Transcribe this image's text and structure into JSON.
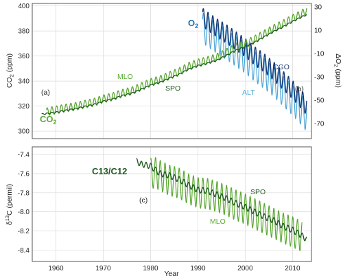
{
  "colors": {
    "light_green": "#5aa832",
    "dark_green": "#1f5a1f",
    "light_blue": "#4ea6d6",
    "dark_blue": "#173a78",
    "o2_label": "#1a6fb4",
    "grid": "#d9d9d9",
    "frame": "#555555"
  },
  "chart_data": [
    {
      "type": "line",
      "x_ticks": [
        "1960",
        "1970",
        "1980",
        "1990",
        "2000",
        "2010"
      ],
      "xlim": [
        1955,
        2014
      ],
      "left_axis": {
        "ylabel": "CO",
        "ylabel_sub": "2",
        "ylabel_unit": " (ppm)",
        "ylim": [
          294,
          402
        ],
        "ticks": [
          "300",
          "320",
          "340",
          "360",
          "380",
          "400"
        ]
      },
      "right_axis": {
        "ylabel": "ΔO",
        "ylabel_sub": "2",
        "ylabel_unit": " (ppm)",
        "ylim": [
          -83,
          33
        ],
        "ticks": [
          "30",
          "10",
          "-10",
          "-30",
          "-50",
          "-70"
        ]
      },
      "panel_label_left": "(a)",
      "panel_label_right": "(b)",
      "labels": {
        "co2_main": "CO",
        "co2_sub": "2",
        "o2_main": "O",
        "o2_sub": "2",
        "mlo": "MLO",
        "spo": "SPO",
        "cgo": "CGO",
        "alt": "ALT"
      },
      "series": [
        {
          "name": "MLO",
          "axis": "left",
          "x": [
            1958,
            1960,
            1962,
            1964,
            1966,
            1968,
            1970,
            1972,
            1974,
            1976,
            1978,
            1980,
            1982,
            1984,
            1986,
            1988,
            1990,
            1992,
            1994,
            1996,
            1998,
            2000,
            2002,
            2004,
            2006,
            2008,
            2010,
            2012,
            2013
          ],
          "y": [
            315.3,
            316.9,
            318.4,
            319.6,
            321.4,
            323.0,
            325.7,
            327.5,
            330.2,
            332.1,
            335.4,
            338.8,
            341.1,
            344.4,
            347.4,
            351.6,
            354.4,
            356.4,
            358.8,
            362.6,
            366.7,
            369.6,
            373.2,
            377.5,
            381.9,
            385.6,
            389.9,
            393.8,
            396.5
          ],
          "seasonal_amplitude": 3.2
        },
        {
          "name": "SPO",
          "axis": "left",
          "x": [
            1957,
            1960,
            1962,
            1964,
            1966,
            1968,
            1970,
            1972,
            1974,
            1976,
            1978,
            1980,
            1982,
            1984,
            1986,
            1988,
            1990,
            1992,
            1994,
            1996,
            1998,
            2000,
            2002,
            2004,
            2006,
            2008,
            2010,
            2012,
            2013
          ],
          "y": [
            313.5,
            315.0,
            316.5,
            317.8,
            319.5,
            321.2,
            323.8,
            325.6,
            328.3,
            330.2,
            333.4,
            336.8,
            339.0,
            342.4,
            345.3,
            349.4,
            352.2,
            354.2,
            356.6,
            360.4,
            364.5,
            367.4,
            371.0,
            375.3,
            379.6,
            383.3,
            387.6,
            391.4,
            393.0
          ],
          "seasonal_amplitude": 0.5
        },
        {
          "name": "CGO",
          "axis": "right",
          "x": [
            1991,
            1992,
            1994,
            1996,
            1998,
            2000,
            2002,
            2004,
            2006,
            2008,
            2010,
            2012,
            2013
          ],
          "y": [
            21,
            18,
            12,
            7,
            1,
            -5,
            -12,
            -18,
            -25,
            -33,
            -41,
            -50,
            -55
          ],
          "seasonal_amplitude": 8
        },
        {
          "name": "ALT",
          "axis": "right",
          "x": [
            1991,
            1992,
            1994,
            1996,
            1998,
            2000,
            2002,
            2004,
            2006,
            2008,
            2010,
            2012,
            2013
          ],
          "y": [
            12,
            9,
            3,
            -2,
            -8,
            -14,
            -21,
            -27,
            -34,
            -42,
            -50,
            -59,
            -64
          ],
          "seasonal_amplitude": 13
        }
      ]
    },
    {
      "type": "line",
      "x_ticks": [
        "1960",
        "1970",
        "1980",
        "1990",
        "2000",
        "2010"
      ],
      "xlim": [
        1955,
        2014
      ],
      "xlabel": "Year",
      "ylabel_delta": "δ",
      "ylabel_sup": "13",
      "ylabel_rest": "C (permil)",
      "ylim": [
        -8.52,
        -7.32
      ],
      "y_ticks": [
        "-7.4",
        "-7.6",
        "-7.8",
        "-8.0",
        "-8.2",
        "-8.4"
      ],
      "panel_label": "(c)",
      "labels": {
        "title": "C13/C12",
        "spo": "SPO",
        "mlo": "MLO"
      },
      "series": [
        {
          "name": "MLO",
          "x": [
            1980,
            1981,
            1982,
            1984,
            1986,
            1988,
            1990,
            1992,
            1994,
            1996,
            1998,
            2000,
            2002,
            2004,
            2006,
            2008,
            2010,
            2012
          ],
          "y": [
            -7.6,
            -7.59,
            -7.62,
            -7.67,
            -7.7,
            -7.76,
            -7.8,
            -7.81,
            -7.84,
            -7.88,
            -7.93,
            -7.97,
            -8.02,
            -8.07,
            -8.12,
            -8.17,
            -8.21,
            -8.26
          ],
          "seasonal_amplitude": 0.16
        },
        {
          "name": "SPO",
          "x": [
            1977,
            1978,
            1980,
            1982,
            1984,
            1986,
            1988,
            1990,
            1992,
            1994,
            1996,
            1998,
            2000,
            2002,
            2004,
            2006,
            2008,
            2010,
            2012,
            2013
          ],
          "y": [
            -7.47,
            -7.5,
            -7.52,
            -7.6,
            -7.62,
            -7.66,
            -7.72,
            -7.77,
            -7.78,
            -7.82,
            -7.86,
            -7.91,
            -7.95,
            -8.0,
            -8.05,
            -8.09,
            -8.15,
            -8.19,
            -8.25,
            -8.29
          ],
          "seasonal_amplitude": 0.03
        }
      ]
    }
  ]
}
